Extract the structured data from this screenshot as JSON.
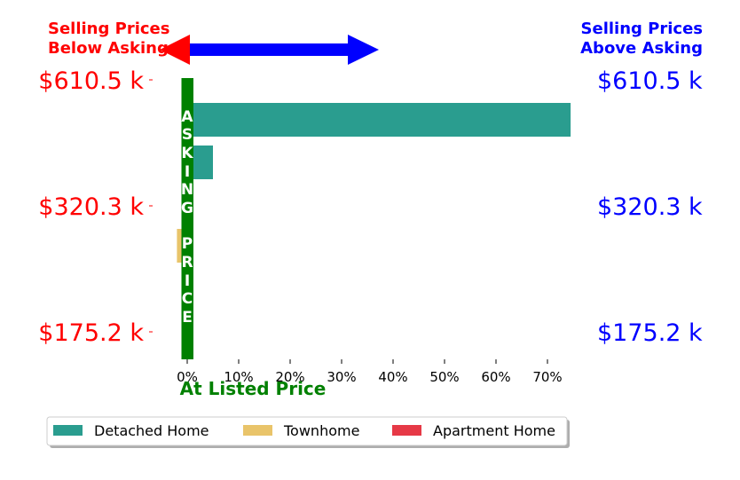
{
  "chart_data": {
    "type": "bar",
    "orientation": "horizontal",
    "title": "",
    "xlabel": "At Listed Price",
    "x_unit": "%",
    "x_ticks": [
      "0%",
      "10%",
      "20%",
      "30%",
      "40%",
      "50%",
      "60%",
      "70%"
    ],
    "xlim": [
      -3,
      74.5
    ],
    "left_header": [
      "Selling Prices",
      "Below Asking"
    ],
    "right_header": [
      "Selling Prices",
      "Above Asking"
    ],
    "price_ticks": [
      "$610.5 k",
      "$320.3 k",
      "$175.2 k"
    ],
    "asking_label": "ASKING PRICE",
    "series": [
      {
        "name": "Detached Home",
        "color": "#2a9d8f",
        "values": [
          74.5,
          5
        ]
      },
      {
        "name": "Townhome",
        "color": "#e9c46a",
        "values": [
          -2
        ]
      },
      {
        "name": "Apartment Home",
        "color": "#e63946",
        "values": [
          1.2
        ]
      }
    ],
    "bars": [
      {
        "series": "Detached Home",
        "value": 74.5,
        "row": 0
      },
      {
        "series": "Detached Home",
        "value": 5,
        "row": 1
      },
      {
        "series": "Apartment Home",
        "value": 1.2,
        "row": 2
      },
      {
        "series": "Townhome",
        "value": -2,
        "row": 3
      }
    ],
    "grid": false,
    "legend_position": "bottom-center",
    "colors": {
      "below": "#ff0000",
      "above": "#0000ff",
      "asking": "#008000"
    }
  }
}
